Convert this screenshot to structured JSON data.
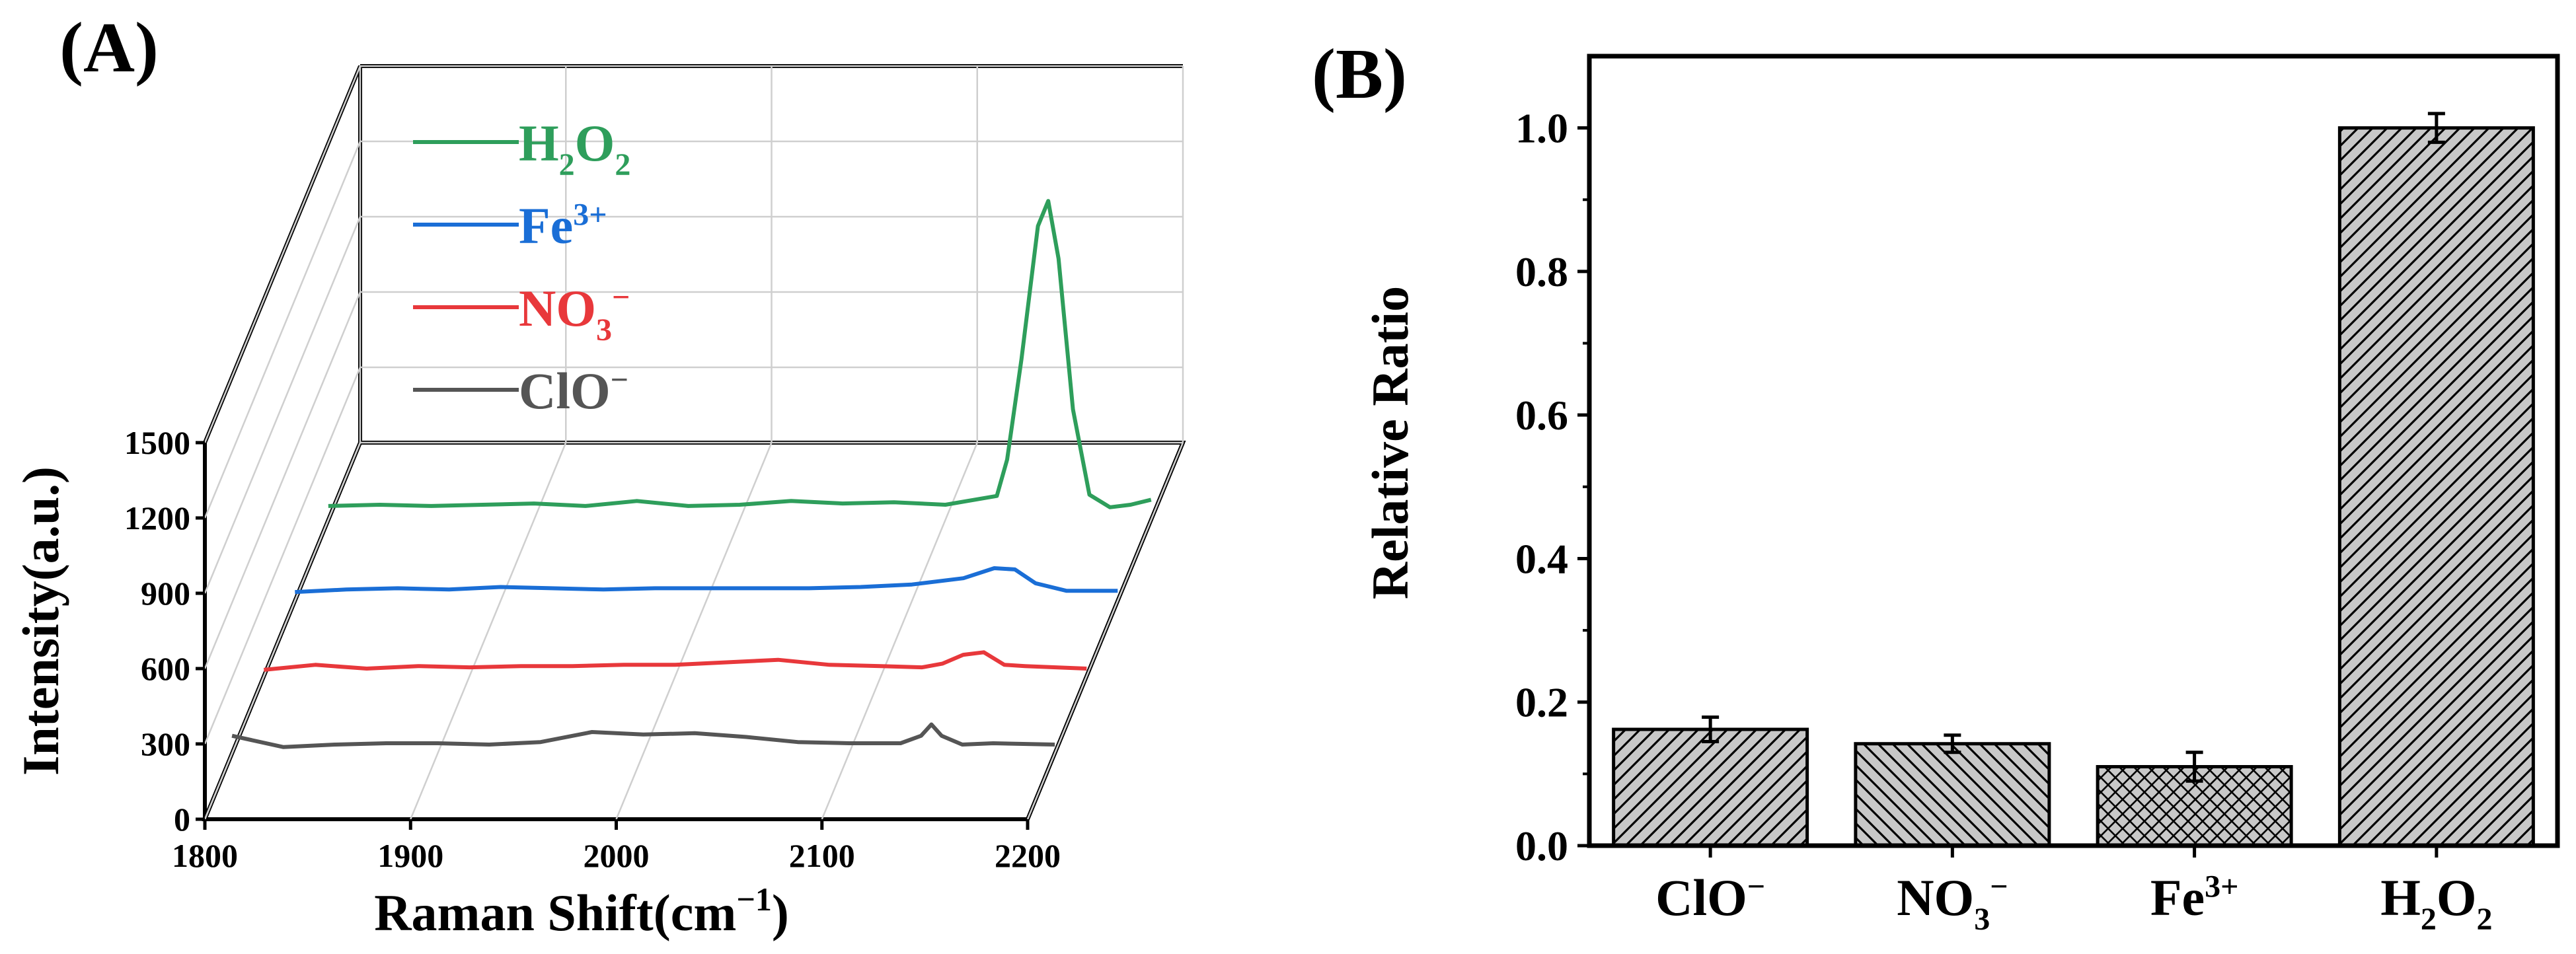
{
  "chart_data": [
    {
      "type": "line",
      "panel_label": "(A)",
      "style": "3D waterfall of Raman spectra",
      "xlabel": "Raman Shift(cm",
      "xlabel_sup": "−1",
      "xlabel_end": ")",
      "ylabel": "Intensity(a.u.)",
      "xlim": [
        1800,
        2200
      ],
      "ylim": [
        0,
        1500
      ],
      "xticks": [
        "1800",
        "1900",
        "2000",
        "2100",
        "2200"
      ],
      "yticks": [
        "0",
        "300",
        "600",
        "900",
        "1200",
        "1500"
      ],
      "series": [
        {
          "name": "ClO−",
          "base": "ClO",
          "sub": "",
          "sup": "−",
          "color": "#555555",
          "x": [
            1800,
            1825,
            1850,
            1875,
            1900,
            1925,
            1950,
            1975,
            2000,
            2025,
            2050,
            2075,
            2100,
            2125,
            2135,
            2140,
            2145,
            2155,
            2170,
            2200
          ],
          "y": [
            40,
            -5,
            5,
            10,
            10,
            5,
            15,
            55,
            45,
            50,
            35,
            15,
            10,
            10,
            40,
            85,
            40,
            5,
            10,
            5
          ]
        },
        {
          "name": "NO3−",
          "base": "NO",
          "sub": "3",
          "sup": "−",
          "color": "#e8383b",
          "x": [
            1800,
            1825,
            1850,
            1875,
            1900,
            1925,
            1950,
            1975,
            2000,
            2025,
            2050,
            2075,
            2100,
            2120,
            2130,
            2140,
            2150,
            2160,
            2170,
            2200
          ],
          "y": [
            5,
            25,
            10,
            20,
            15,
            20,
            20,
            25,
            25,
            35,
            45,
            25,
            20,
            15,
            30,
            65,
            75,
            25,
            20,
            10
          ]
        },
        {
          "name": "Fe3+",
          "base": "Fe",
          "sub": "",
          "sup": "3+",
          "color": "#1a6ed6",
          "x": [
            1800,
            1825,
            1850,
            1875,
            1900,
            1925,
            1950,
            1975,
            2000,
            2025,
            2050,
            2075,
            2100,
            2125,
            2140,
            2150,
            2160,
            2175,
            2200
          ],
          "y": [
            5,
            15,
            20,
            15,
            25,
            20,
            15,
            20,
            20,
            20,
            20,
            25,
            35,
            60,
            100,
            95,
            40,
            10,
            10
          ]
        },
        {
          "name": "H2O2",
          "base": "H",
          "sub": "2",
          "base2": "O",
          "sub2": "2",
          "sup": "",
          "color": "#2e9e5b",
          "x": [
            1800,
            1825,
            1850,
            1875,
            1900,
            1925,
            1950,
            1975,
            2000,
            2025,
            2050,
            2075,
            2100,
            2125,
            2130,
            2137,
            2145,
            2150,
            2155,
            2162,
            2170,
            2180,
            2190,
            2200
          ],
          "y": [
            15,
            20,
            15,
            20,
            25,
            15,
            35,
            15,
            20,
            35,
            25,
            30,
            20,
            55,
            200,
            600,
            1130,
            1230,
            1000,
            400,
            60,
            10,
            20,
            40
          ]
        }
      ]
    },
    {
      "type": "bar",
      "panel_label": "(B)",
      "categories": [
        "ClO−",
        "NO3−",
        "Fe3+",
        "H2O2"
      ],
      "category_labels": [
        {
          "base": "ClO",
          "sub": "",
          "base2": "",
          "sub2": "",
          "sup": "−"
        },
        {
          "base": "NO",
          "sub": "3",
          "base2": "",
          "sub2": "",
          "sup": "−"
        },
        {
          "base": "Fe",
          "sub": "",
          "base2": "",
          "sub2": "",
          "sup": "3+"
        },
        {
          "base": "H",
          "sub": "2",
          "base2": "O",
          "sub2": "2",
          "sup": ""
        }
      ],
      "values": [
        0.162,
        0.142,
        0.11,
        1.0
      ],
      "errors": [
        0.017,
        0.012,
        0.02,
        0.02
      ],
      "patterns": [
        "diagonal-right",
        "diagonal-left",
        "crosshatch",
        "diagonal-right"
      ],
      "ylabel": "Relative Ratio",
      "ylim": [
        0,
        1.1
      ],
      "yticks": [
        "0.0",
        "0.2",
        "0.4",
        "0.6",
        "0.8",
        "1.0"
      ],
      "bar_color": "#c8c8c8"
    }
  ]
}
